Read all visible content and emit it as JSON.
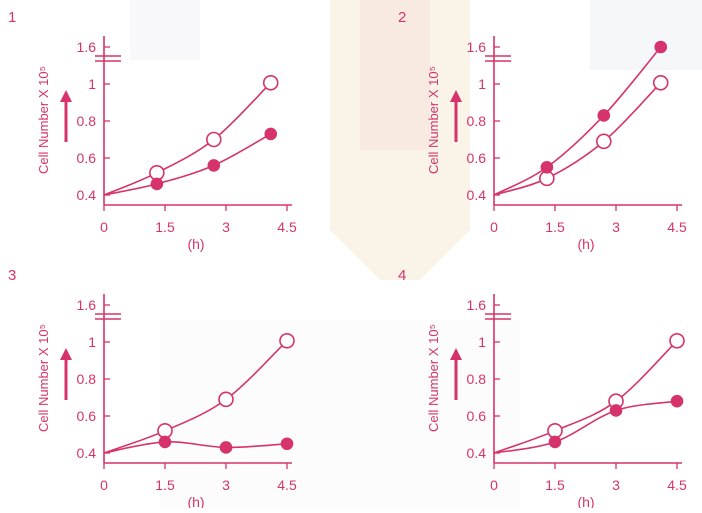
{
  "colors": {
    "ink": "#d6336c",
    "fill_filled": "#d6336c",
    "fill_open": "#ffffff",
    "watermark": "#f6e9d6"
  },
  "chart_data": [
    {
      "type": "line",
      "panel_label": "1",
      "ylabel": "Cell Number X 10⁵",
      "xlabel": "(h)",
      "xlim": [
        0,
        4.5
      ],
      "ylim": [
        0.4,
        1.6
      ],
      "xticks": [
        "0",
        "1.5",
        "3",
        "4.5"
      ],
      "yticks": [
        "0.4",
        "0.6",
        "0.8",
        "1",
        "1.6"
      ],
      "series": [
        {
          "marker": "open",
          "x": [
            0,
            1.3,
            2.7,
            4.1
          ],
          "y": [
            0.4,
            0.52,
            0.7,
            1.02
          ]
        },
        {
          "marker": "filled",
          "x": [
            0,
            1.3,
            2.7,
            4.1
          ],
          "y": [
            0.4,
            0.46,
            0.56,
            0.73
          ]
        }
      ]
    },
    {
      "type": "line",
      "panel_label": "2",
      "ylabel": "Cell Number X 10⁵",
      "xlabel": "(h)",
      "xlim": [
        0,
        4.5
      ],
      "ylim": [
        0.4,
        1.6
      ],
      "xticks": [
        "0",
        "1.5",
        "3",
        "4.5"
      ],
      "yticks": [
        "0.4",
        "0.6",
        "0.8",
        "1",
        "1.6"
      ],
      "series": [
        {
          "marker": "open",
          "x": [
            0,
            1.3,
            2.7,
            4.1
          ],
          "y": [
            0.4,
            0.49,
            0.69,
            1.02
          ]
        },
        {
          "marker": "filled",
          "x": [
            0,
            1.3,
            2.7,
            4.1
          ],
          "y": [
            0.4,
            0.55,
            0.83,
            1.6
          ]
        }
      ]
    },
    {
      "type": "line",
      "panel_label": "3",
      "ylabel": "Cell Number X 10⁵",
      "xlabel": "(h)",
      "xlim": [
        0,
        4.5
      ],
      "ylim": [
        0.4,
        1.6
      ],
      "xticks": [
        "0",
        "1.5",
        "3",
        "4.5"
      ],
      "yticks": [
        "0.4",
        "0.6",
        "0.8",
        "1",
        "1.6"
      ],
      "series": [
        {
          "marker": "open",
          "x": [
            0,
            1.5,
            3,
            4.5
          ],
          "y": [
            0.4,
            0.52,
            0.69,
            1.02
          ]
        },
        {
          "marker": "filled",
          "x": [
            0,
            1.5,
            3,
            4.5
          ],
          "y": [
            0.4,
            0.46,
            0.43,
            0.45
          ]
        }
      ]
    },
    {
      "type": "line",
      "panel_label": "4",
      "ylabel": "Cell Number X 10⁵",
      "xlabel": "(h)",
      "xlim": [
        0,
        4.5
      ],
      "ylim": [
        0.4,
        1.6
      ],
      "xticks": [
        "0",
        "1.5",
        "3",
        "4.5"
      ],
      "yticks": [
        "0.4",
        "0.6",
        "0.8",
        "1",
        "1.6"
      ],
      "series": [
        {
          "marker": "open",
          "x": [
            0,
            1.5,
            3,
            4.5
          ],
          "y": [
            0.4,
            0.52,
            0.68,
            1.02
          ]
        },
        {
          "marker": "filled",
          "x": [
            0,
            1.5,
            3,
            4.5
          ],
          "y": [
            0.4,
            0.46,
            0.63,
            0.68
          ]
        }
      ]
    }
  ]
}
